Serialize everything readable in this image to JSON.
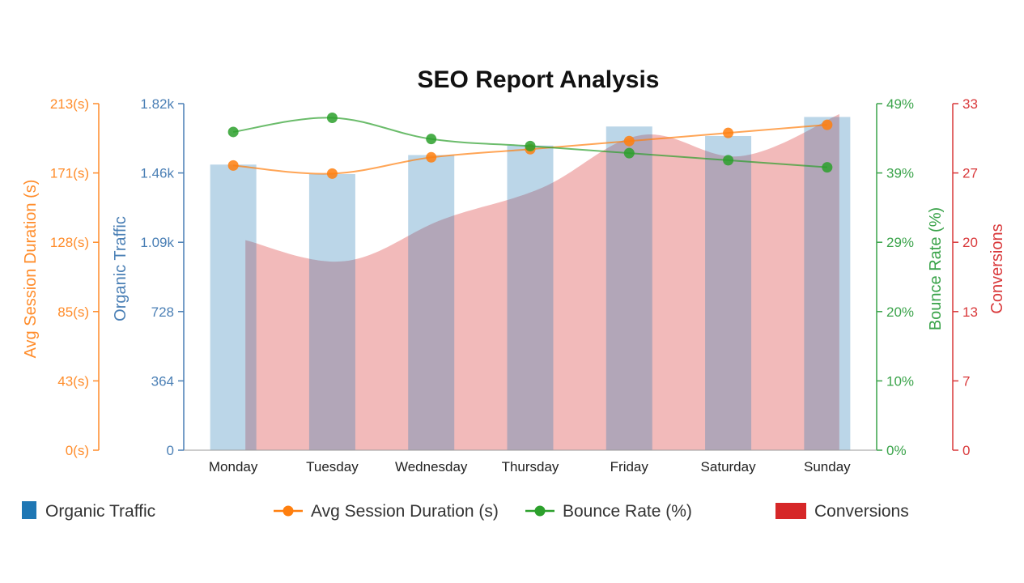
{
  "chart_data": {
    "type": "bar",
    "title": "SEO Report Analysis",
    "categories": [
      "Monday",
      "Tuesday",
      "Wednesday",
      "Thursday",
      "Friday",
      "Saturday",
      "Sunday"
    ],
    "series": [
      {
        "name": "Organic Traffic",
        "type": "bar",
        "axis": "traffic",
        "color": "#1f77b4",
        "values": [
          1500,
          1450,
          1550,
          1600,
          1700,
          1650,
          1750
        ]
      },
      {
        "name": "Avg Session Duration (s)",
        "type": "line",
        "axis": "duration",
        "color": "#ff7f0e",
        "values": [
          175,
          170,
          180,
          185,
          190,
          195,
          200
        ]
      },
      {
        "name": "Bounce Rate (%)",
        "type": "line",
        "axis": "bounce",
        "color": "#2ca02c",
        "values": [
          45,
          47,
          44,
          43,
          42,
          41,
          40
        ]
      },
      {
        "name": "Conversions",
        "type": "area",
        "axis": "conversions",
        "color": "#d62728",
        "values": [
          20,
          18,
          22,
          25,
          30,
          28,
          32
        ]
      }
    ],
    "axes": {
      "traffic": {
        "label": "Organic Traffic",
        "color": "#4a7fb5",
        "min": 0,
        "max": 1820,
        "ticks": [
          "0",
          "364",
          "728",
          "1.09k",
          "1.46k",
          "1.82k"
        ]
      },
      "duration": {
        "label": "Avg Session Duration (s)",
        "color": "#ff8c2a",
        "min": 0,
        "max": 213,
        "ticks": [
          "0(s)",
          "43(s)",
          "85(s)",
          "128(s)",
          "171(s)",
          "213(s)"
        ]
      },
      "bounce": {
        "label": "Bounce Rate (%)",
        "color": "#3aa34a",
        "min": 0,
        "max": 49,
        "ticks": [
          "0%",
          "10%",
          "20%",
          "29%",
          "39%",
          "49%"
        ]
      },
      "conversions": {
        "label": "Conversions",
        "color": "#d9383a",
        "min": 0,
        "max": 33,
        "ticks": [
          "0",
          "7",
          "13",
          "20",
          "27",
          "33"
        ]
      }
    },
    "legend_position": "bottom",
    "grid": false
  }
}
